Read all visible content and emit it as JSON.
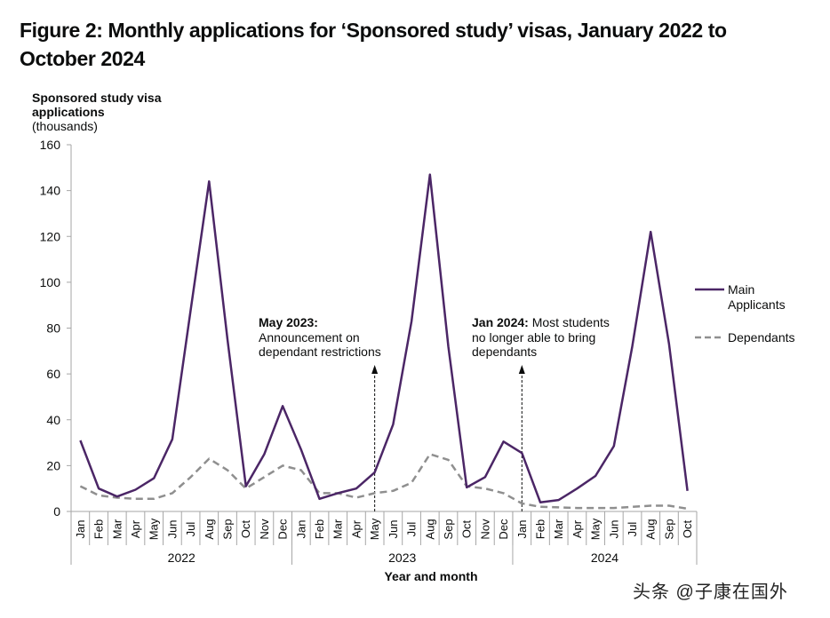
{
  "figure": {
    "title": "Figure 2: Monthly applications for ‘Sponsored study’ visas, January 2022 to October 2024",
    "ylabel_bold_line1": "Sponsored study visa",
    "ylabel_bold_line2": "applications",
    "ylabel_unit": "(thousands)",
    "watermark": "头条 @子康在国外"
  },
  "annotations": [
    {
      "bold": "May 2023:",
      "text_lines": [
        "Announcement on",
        "dependant restrictions"
      ],
      "month_index": 16
    },
    {
      "bold": "Jan 2024:",
      "first_line_rest": " Most students",
      "text_lines": [
        "no longer able to bring",
        "dependants"
      ],
      "month_index": 24
    }
  ],
  "chart_data": {
    "type": "line",
    "title": "Figure 2: Monthly applications for ‘Sponsored study’ visas, January 2022 to October 2024",
    "xlabel": "Year and month",
    "ylabel": "Sponsored study visa applications (thousands)",
    "ylim": [
      0,
      160
    ],
    "yticks": [
      0,
      20,
      40,
      60,
      80,
      100,
      120,
      140,
      160
    ],
    "grid": false,
    "legend_position": "right",
    "x": [
      "Jan",
      "Feb",
      "Mar",
      "Apr",
      "May",
      "Jun",
      "Jul",
      "Aug",
      "Sep",
      "Oct",
      "Nov",
      "Dec",
      "Jan",
      "Feb",
      "Mar",
      "Apr",
      "May",
      "Jun",
      "Jul",
      "Aug",
      "Sep",
      "Oct",
      "Nov",
      "Dec",
      "Jan",
      "Feb",
      "Mar",
      "Apr",
      "May",
      "Jun",
      "Jul",
      "Aug",
      "Sep",
      "Oct"
    ],
    "year_groups": [
      {
        "label": "2022",
        "months": 12
      },
      {
        "label": "2023",
        "months": 12
      },
      {
        "label": "2024",
        "months": 10
      }
    ],
    "series": [
      {
        "name": "Main Applicants",
        "legend_lines": [
          "Main",
          "Applicants"
        ],
        "color": "#4b2666",
        "style": "solid",
        "values": [
          31,
          10,
          6.5,
          9.5,
          14.5,
          31.5,
          88,
          144,
          75,
          11,
          25,
          46,
          27,
          5.5,
          8,
          10,
          17,
          38,
          83,
          147,
          72,
          10.5,
          15,
          30.5,
          25.5,
          4,
          5,
          10,
          15.5,
          28.5,
          72,
          122,
          73,
          9
        ]
      },
      {
        "name": "Dependants",
        "legend_lines": [
          "Dependants"
        ],
        "color": "#8f8f8f",
        "style": "dashed",
        "values": [
          11,
          7,
          6,
          5.5,
          5.5,
          8,
          15,
          23,
          18,
          10,
          15,
          20,
          18,
          8,
          8,
          6,
          8,
          9,
          12.5,
          25,
          22.5,
          11,
          10,
          8,
          3.5,
          2,
          1.8,
          1.5,
          1.5,
          1.5,
          2,
          2.5,
          2.5,
          1.2
        ]
      }
    ]
  }
}
